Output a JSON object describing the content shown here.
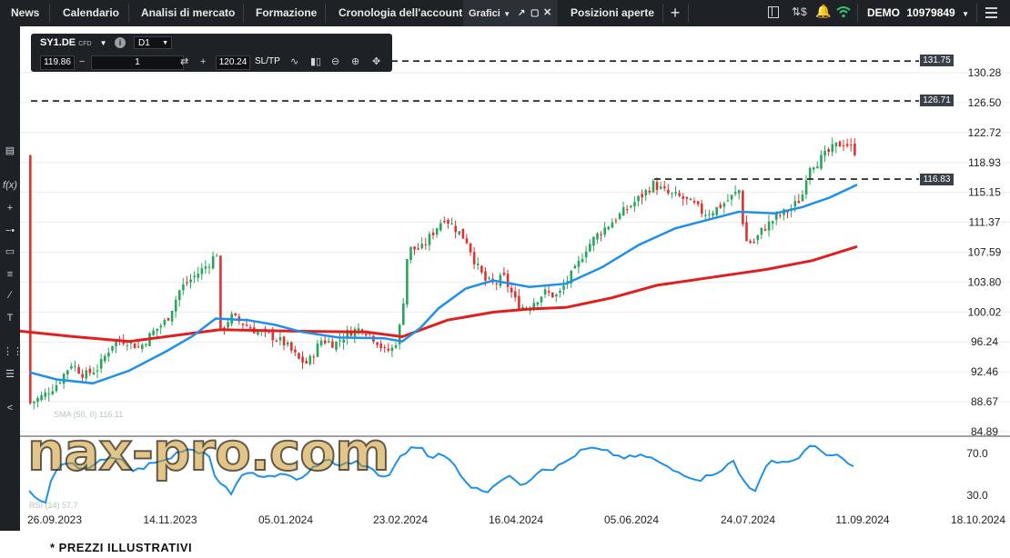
{
  "topbar": {
    "tabs": [
      {
        "label": "News"
      },
      {
        "label": "Calendario"
      },
      {
        "label": "Analisi di mercato"
      },
      {
        "label": "Formazione"
      },
      {
        "label": "Cronologia dell'account"
      },
      {
        "label": "Grafici"
      },
      {
        "label": "Posizioni aperte"
      }
    ],
    "add_tab_icon": "plus-icon",
    "account_mode": "DEMO",
    "account_number": "10979849",
    "menu_icon": "hamburger-icon"
  },
  "toolbar": {
    "symbol": "SY1.DE",
    "symbol_type": "CFD",
    "timeframe": "D1",
    "bid": "119.86",
    "quantity": "1",
    "ask": "120.24",
    "sltp_label": "SL/TP"
  },
  "price_labels": {
    "line1": "131.75",
    "line2": "126.71",
    "line3": "116.83"
  },
  "indicator_labels": {
    "sma": "SMA (50, 0) 116.11",
    "rsi": "RSI (14) 57.7"
  },
  "watermark": "nax-pro.com",
  "footnote": "* PREZZI ILLUSTRATIVI",
  "chart_data": {
    "type": "candlestick",
    "symbol": "SY1.DE",
    "timeframe": "D1",
    "x_tick_labels": [
      "26.09.2023",
      "14.11.2023",
      "05.01.2024",
      "23.02.2024",
      "16.04.2024",
      "05.06.2024",
      "24.07.2024",
      "11.09.2024",
      "18.10.2024"
    ],
    "y_tick_labels": [
      "130.28",
      "126.50",
      "122.72",
      "118.93",
      "115.15",
      "111.37",
      "107.59",
      "103.80",
      "100.02",
      "96.24",
      "92.46",
      "88.67",
      "84.89"
    ],
    "ylim": [
      84.89,
      131.75
    ],
    "horizontal_lines": [
      131.75,
      126.71,
      116.83
    ],
    "sma50_last": 116.11,
    "ma_long_color": "#e02020",
    "ma_short_color": "#1e90e8",
    "rsi": {
      "period": 14,
      "last": 57.7,
      "levels": [
        "70.0",
        "30.0"
      ]
    },
    "up_color": "#26a65b",
    "down_color": "#e03030"
  },
  "colors": {
    "topbar_bg": "#1e2227",
    "accent_dashed": "#1b1b1b",
    "price_label_bg": "#3a4048"
  }
}
